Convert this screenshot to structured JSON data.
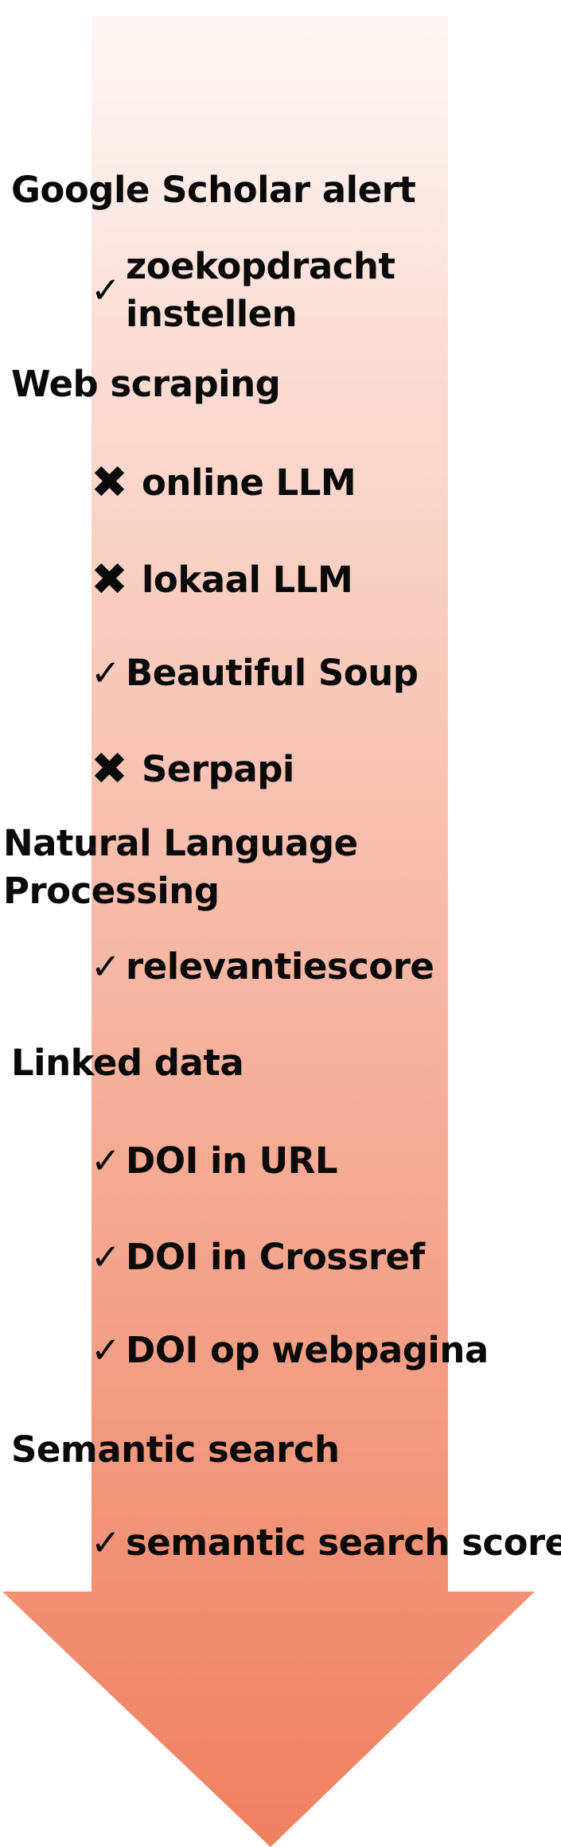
{
  "diagram": {
    "colors": {
      "arrow_top": "#fdf1ee",
      "arrow_bottom": "#ef8060",
      "text": "#0a0a0a"
    },
    "check_symbol": "✓",
    "cross_symbol": "✖",
    "sections": [
      {
        "title": "Google Scholar alert",
        "items": [
          {
            "status": "check",
            "label": "zoekopdracht instellen"
          }
        ]
      },
      {
        "title": "Web scraping",
        "items": [
          {
            "status": "cross",
            "label": "online LLM"
          },
          {
            "status": "cross",
            "label": "lokaal LLM"
          },
          {
            "status": "check",
            "label": "Beautiful Soup"
          },
          {
            "status": "cross",
            "label": "Serpapi"
          }
        ]
      },
      {
        "title": "Natural Language Processing",
        "items": [
          {
            "status": "check",
            "label": "relevantiescore"
          }
        ]
      },
      {
        "title": "Linked data",
        "items": [
          {
            "status": "check",
            "label": "DOI in URL"
          },
          {
            "status": "check",
            "label": "DOI in Crossref"
          },
          {
            "status": "check",
            "label": "DOI op webpagina"
          }
        ]
      },
      {
        "title": "Semantic search",
        "items": [
          {
            "status": "check",
            "label": "semantic search scorel"
          }
        ]
      }
    ]
  }
}
